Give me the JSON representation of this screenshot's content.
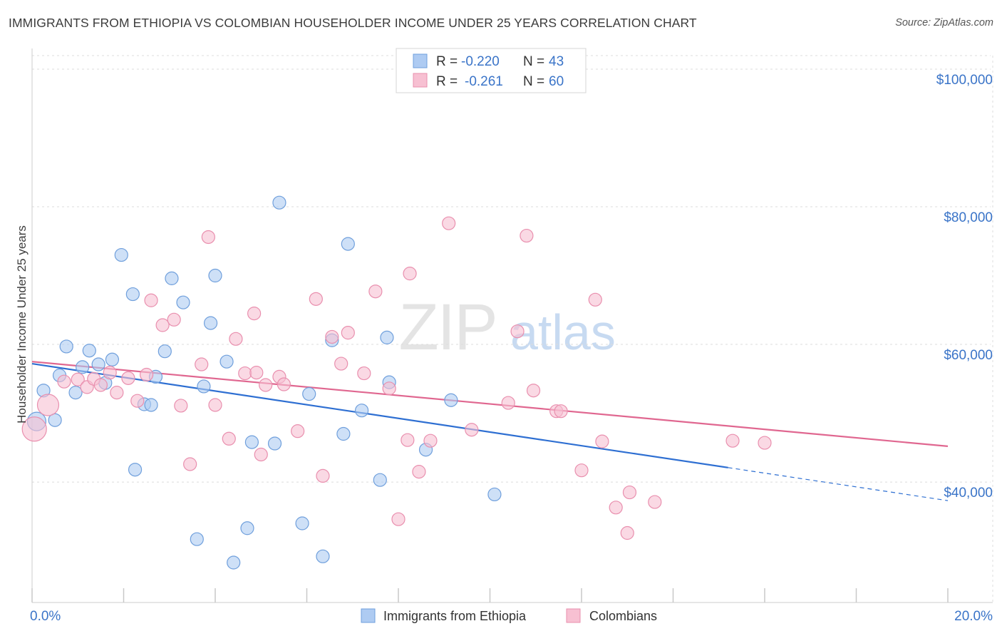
{
  "header": {
    "title": "IMMIGRANTS FROM ETHIOPIA VS COLOMBIAN HOUSEHOLDER INCOME UNDER 25 YEARS CORRELATION CHART",
    "source": "Source: ZipAtlas.com"
  },
  "watermark": {
    "zip": "ZIP",
    "atlas": "atlas"
  },
  "colors": {
    "ethiopia_fill": "#aecbf2",
    "ethiopia_stroke": "#6f9fdc",
    "ethiopia_line": "#2e6fd2",
    "colombia_fill": "#f7c0d2",
    "colombia_stroke": "#e98fae",
    "colombia_line": "#e06790",
    "axis_label": "#3a74c8",
    "grid": "#dcdcdc"
  },
  "legend_top": {
    "rows": [
      {
        "r_label": "R = ",
        "r_value": "-0.220",
        "n_label": "N = ",
        "n_value": "43"
      },
      {
        "r_label": "R = ",
        "r_value": "-0.261",
        "n_label": "N = ",
        "n_value": "60"
      }
    ]
  },
  "chart_data": {
    "type": "scatter",
    "title": "IMMIGRANTS FROM ETHIOPIA VS COLOMBIAN HOUSEHOLDER INCOME UNDER 25 YEARS CORRELATION CHART",
    "xlabel": "",
    "ylabel": "Householder Income Under 25 years",
    "xlim": [
      0,
      20
    ],
    "ylim": [
      22500,
      103000
    ],
    "x_tick_labels": [
      "0.0%",
      "20.0%"
    ],
    "y_ticks": [
      {
        "value": 40000,
        "label": "$40,000"
      },
      {
        "value": 60000,
        "label": "$60,000"
      },
      {
        "value": 80000,
        "label": "$80,000"
      },
      {
        "value": 100000,
        "label": "$100,000"
      }
    ],
    "legend_position": "bottom-center",
    "series": [
      {
        "name": "Immigrants from Ethiopia",
        "r": -0.22,
        "n": 43,
        "trend": {
          "x0": 0,
          "y0": 57200,
          "x1": 15.2,
          "y1": 42100,
          "dash_to_x": 20,
          "dash_to_y": 37300
        },
        "points": [
          [
            0.1,
            48800,
            13
          ],
          [
            0.25,
            53300,
            9
          ],
          [
            0.5,
            49000,
            9
          ],
          [
            0.6,
            55500,
            9
          ],
          [
            0.75,
            59700,
            9
          ],
          [
            0.95,
            53000,
            9
          ],
          [
            1.1,
            56700,
            9
          ],
          [
            1.25,
            59100,
            9
          ],
          [
            1.45,
            57100,
            9
          ],
          [
            1.6,
            54400,
            9
          ],
          [
            1.75,
            57800,
            9
          ],
          [
            1.95,
            73000,
            9
          ],
          [
            2.2,
            67300,
            9
          ],
          [
            2.25,
            41800,
            9
          ],
          [
            2.45,
            51300,
            9
          ],
          [
            2.6,
            51200,
            9
          ],
          [
            2.7,
            55300,
            9
          ],
          [
            2.9,
            59000,
            9
          ],
          [
            3.05,
            69600,
            9
          ],
          [
            3.3,
            66100,
            9
          ],
          [
            3.6,
            31700,
            9
          ],
          [
            3.75,
            53900,
            9
          ],
          [
            3.9,
            63100,
            9
          ],
          [
            4.0,
            70000,
            9
          ],
          [
            4.25,
            57500,
            9
          ],
          [
            4.4,
            28300,
            9
          ],
          [
            4.7,
            33300,
            9
          ],
          [
            4.8,
            45800,
            9
          ],
          [
            5.3,
            45600,
            9
          ],
          [
            5.4,
            80600,
            9
          ],
          [
            5.9,
            34000,
            9
          ],
          [
            6.05,
            52800,
            9
          ],
          [
            6.35,
            29200,
            9
          ],
          [
            6.55,
            60600,
            9
          ],
          [
            6.8,
            47000,
            9
          ],
          [
            6.9,
            74600,
            9
          ],
          [
            7.2,
            50400,
            9
          ],
          [
            7.6,
            40300,
            9
          ],
          [
            7.75,
            61000,
            9
          ],
          [
            7.8,
            54500,
            9
          ],
          [
            8.6,
            44700,
            9
          ],
          [
            9.15,
            51900,
            9
          ],
          [
            10.1,
            38200,
            9
          ]
        ]
      },
      {
        "name": "Colombians",
        "r": -0.261,
        "n": 60,
        "trend": {
          "x0": 0,
          "y0": 57500,
          "x1": 20,
          "y1": 45200
        },
        "points": [
          [
            0.05,
            47700,
            17
          ],
          [
            0.35,
            51200,
            15
          ],
          [
            0.7,
            54600,
            9
          ],
          [
            1.0,
            54900,
            9
          ],
          [
            1.2,
            53800,
            9
          ],
          [
            1.35,
            55000,
            9
          ],
          [
            1.5,
            54100,
            9
          ],
          [
            1.7,
            55900,
            9
          ],
          [
            1.85,
            53000,
            9
          ],
          [
            2.1,
            55100,
            9
          ],
          [
            2.3,
            51800,
            9
          ],
          [
            2.5,
            55600,
            9
          ],
          [
            2.6,
            66400,
            9
          ],
          [
            2.85,
            62800,
            9
          ],
          [
            3.1,
            63600,
            9
          ],
          [
            3.25,
            51100,
            9
          ],
          [
            3.45,
            42600,
            9
          ],
          [
            3.7,
            57100,
            9
          ],
          [
            3.85,
            75600,
            9
          ],
          [
            4.0,
            51200,
            9
          ],
          [
            4.3,
            46300,
            9
          ],
          [
            4.45,
            60800,
            9
          ],
          [
            4.65,
            55800,
            9
          ],
          [
            4.85,
            64500,
            9
          ],
          [
            5.0,
            44000,
            9
          ],
          [
            5.1,
            54100,
            9
          ],
          [
            5.4,
            55300,
            9
          ],
          [
            5.5,
            54200,
            9
          ],
          [
            5.8,
            47400,
            9
          ],
          [
            6.2,
            66600,
            9
          ],
          [
            6.35,
            40900,
            9
          ],
          [
            6.55,
            61100,
            9
          ],
          [
            6.75,
            57200,
            9
          ],
          [
            6.9,
            61700,
            9
          ],
          [
            7.25,
            55800,
            9
          ],
          [
            7.5,
            67700,
            9
          ],
          [
            7.8,
            53600,
            9
          ],
          [
            8.0,
            34600,
            9
          ],
          [
            8.2,
            46100,
            9
          ],
          [
            8.25,
            70300,
            9
          ],
          [
            8.45,
            41500,
            9
          ],
          [
            8.7,
            46000,
            9
          ],
          [
            9.1,
            77600,
            9
          ],
          [
            9.6,
            47600,
            9
          ],
          [
            10.4,
            51500,
            9
          ],
          [
            10.6,
            61900,
            9
          ],
          [
            10.8,
            75800,
            9
          ],
          [
            10.95,
            53300,
            9
          ],
          [
            11.45,
            50300,
            9
          ],
          [
            11.55,
            50300,
            9
          ],
          [
            12.0,
            41700,
            9
          ],
          [
            12.3,
            66500,
            9
          ],
          [
            12.45,
            45900,
            9
          ],
          [
            12.75,
            36300,
            9
          ],
          [
            13.0,
            32600,
            9
          ],
          [
            13.05,
            38500,
            9
          ],
          [
            13.6,
            37100,
            9
          ],
          [
            15.3,
            46000,
            9
          ],
          [
            16.0,
            45700,
            9
          ],
          [
            4.9,
            55900,
            9
          ]
        ]
      }
    ]
  }
}
